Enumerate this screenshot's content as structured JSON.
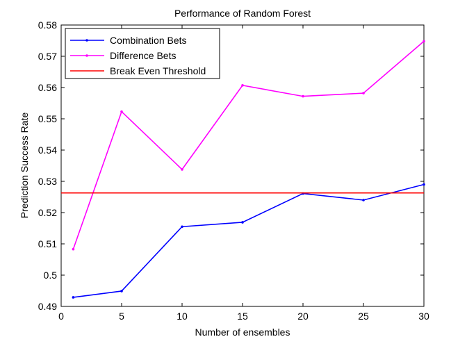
{
  "chart_data": {
    "type": "line",
    "title": "Performance of Random Forest",
    "xlabel": "Number of ensembles",
    "ylabel": "Prediction Success Rate",
    "xlim": [
      0,
      30
    ],
    "ylim": [
      0.49,
      0.58
    ],
    "xticks": [
      0,
      5,
      10,
      15,
      20,
      25,
      30
    ],
    "yticks": [
      0.49,
      0.5,
      0.51,
      0.52,
      0.53,
      0.54,
      0.55,
      0.56,
      0.57,
      0.58
    ],
    "xtick_labels": [
      "0",
      "5",
      "10",
      "15",
      "20",
      "25",
      "30"
    ],
    "ytick_labels": [
      "0.49",
      "0.5",
      "0.51",
      "0.52",
      "0.53",
      "0.54",
      "0.55",
      "0.56",
      "0.57",
      "0.58"
    ],
    "grid": false,
    "legend_position": "top-left",
    "series": [
      {
        "name": "Combination Bets",
        "color": "#0000ff",
        "x": [
          1,
          5,
          10,
          15,
          20,
          25,
          30
        ],
        "y": [
          0.4929,
          0.4949,
          0.5155,
          0.5169,
          0.5261,
          0.524,
          0.529
        ]
      },
      {
        "name": "Difference Bets",
        "color": "#ff00ff",
        "x": [
          1,
          5,
          10,
          15,
          20,
          25,
          30
        ],
        "y": [
          0.5083,
          0.5523,
          0.5338,
          0.5607,
          0.5572,
          0.5582,
          0.5748
        ]
      },
      {
        "name": "Break Even Threshold",
        "color": "#ff0000",
        "type": "hline",
        "y": 0.5263
      }
    ]
  }
}
